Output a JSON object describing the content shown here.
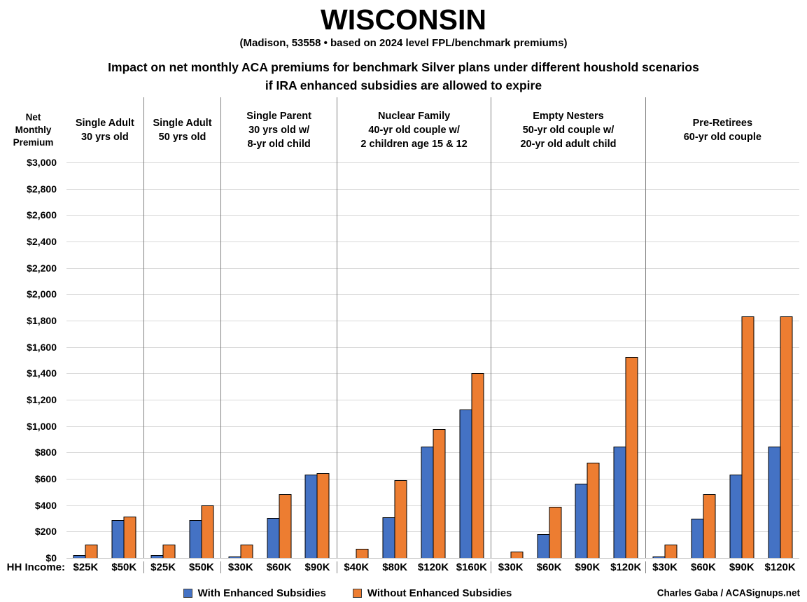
{
  "title": "WISCONSIN",
  "subtitle": "(Madison, 53558 • based on 2024 level FPL/benchmark premiums)",
  "description_line1": "Impact on net monthly ACA premiums for benchmark Silver plans under different houshold scenarios",
  "description_line2": "if IRA enhanced subsidies are allowed to expire",
  "y_axis_title_lines": [
    "Net",
    "Monthly",
    "Premium"
  ],
  "hh_income_label": "HH Income:",
  "legend": [
    {
      "label": "With Enhanced Subsidies",
      "color": "#4472C4"
    },
    {
      "label": "Without Enhanced Subsidies",
      "color": "#ED7D31"
    }
  ],
  "credit": "Charles Gaba / ACASignups.net",
  "colors": {
    "with_enhanced": "#4472C4",
    "without_enhanced": "#ED7D31",
    "bar_outline": "#000000",
    "gridline": "#D9D9D9",
    "divider": "#808080"
  },
  "chart_data": {
    "type": "bar",
    "title": "Impact on net monthly ACA premiums for benchmark Silver plans under different houshold scenarios if IRA enhanced subsidies are allowed to expire",
    "xlabel": "HH Income",
    "ylabel": "Net Monthly Premium",
    "ylim": [
      0,
      3000
    ],
    "ytick_step": 200,
    "yticks": [
      "$3,000",
      "$2,800",
      "$2,600",
      "$2,400",
      "$2,200",
      "$2,000",
      "$1,800",
      "$1,600",
      "$1,400",
      "$1,200",
      "$1,000",
      "$800",
      "$600",
      "$400",
      "$200",
      "$0"
    ],
    "grid": true,
    "legend_position": "bottom",
    "series_names": [
      "With Enhanced Subsidies",
      "Without Enhanced Subsidies"
    ],
    "groups": [
      {
        "header_lines": [
          "Single Adult",
          "30 yrs old"
        ],
        "categories": [
          "$25K",
          "$50K"
        ],
        "with_enhanced": [
          20,
          285
        ],
        "without_enhanced": [
          100,
          315
        ]
      },
      {
        "header_lines": [
          "Single Adult",
          "50 yrs old"
        ],
        "categories": [
          "$25K",
          "$50K"
        ],
        "with_enhanced": [
          20,
          285
        ],
        "without_enhanced": [
          100,
          400
        ]
      },
      {
        "header_lines": [
          "Single Parent",
          "30 yrs old w/",
          "8-yr old child"
        ],
        "categories": [
          "$30K",
          "$60K",
          "$90K"
        ],
        "with_enhanced": [
          10,
          305,
          635
        ],
        "without_enhanced": [
          100,
          485,
          645
        ]
      },
      {
        "header_lines": [
          "Nuclear Family",
          "40-yr old couple w/",
          "2 children age 15 & 12"
        ],
        "categories": [
          "$40K",
          "$80K",
          "$120K",
          "$160K"
        ],
        "with_enhanced": [
          0,
          310,
          845,
          1125
        ],
        "without_enhanced": [
          70,
          590,
          975,
          1400
        ]
      },
      {
        "header_lines": [
          "Empty Nesters",
          "50-yr old couple w/",
          "20-yr old adult child"
        ],
        "categories": [
          "$30K",
          "$60K",
          "$90K",
          "$120K"
        ],
        "with_enhanced": [
          0,
          180,
          565,
          845
        ],
        "without_enhanced": [
          50,
          390,
          725,
          1525
        ]
      },
      {
        "header_lines": [
          "Pre-Retirees",
          "60-yr old couple"
        ],
        "categories": [
          "$30K",
          "$60K",
          "$90K",
          "$120K"
        ],
        "with_enhanced": [
          10,
          300,
          635,
          845
        ],
        "without_enhanced": [
          100,
          485,
          1830,
          1830
        ]
      }
    ]
  }
}
